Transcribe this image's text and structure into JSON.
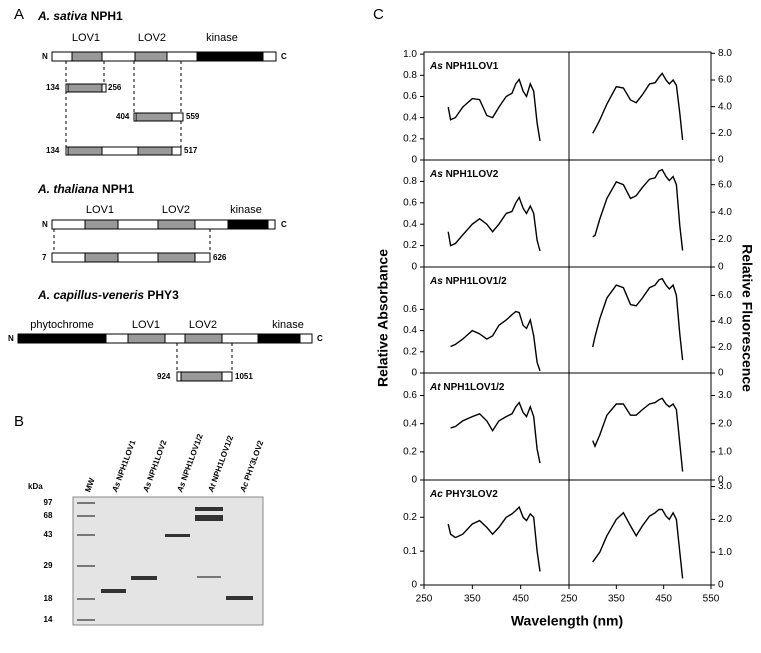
{
  "panel_a": {
    "label": "A",
    "constructs": [
      {
        "species": "A. sativa",
        "protein": "NPH1",
        "n": "N",
        "c": "C",
        "domains": [
          "LOV1",
          "LOV2",
          "kinase"
        ],
        "fragments": [
          [
            134,
            256
          ],
          [
            404,
            559
          ],
          [
            134,
            517
          ]
        ]
      },
      {
        "species": "A. thaliana",
        "protein": "NPH1",
        "n": "N",
        "c": "C",
        "domains": [
          "LOV1",
          "LOV2",
          "kinase"
        ],
        "fragments": [
          [
            7,
            626
          ]
        ]
      },
      {
        "species": "A. capillus-veneris",
        "protein": "PHY3",
        "n": "N",
        "c": "C",
        "domains": [
          "phytochrome",
          "LOV1",
          "LOV2",
          "kinase"
        ],
        "fragments": [
          [
            924,
            1051
          ]
        ]
      }
    ]
  },
  "panel_b": {
    "label": "B",
    "unit": "kDa",
    "markers": [
      97,
      68,
      43,
      29,
      18,
      14
    ],
    "lanes": [
      {
        "species": "",
        "name": "MW"
      },
      {
        "species": "As",
        "name": "NPH1LOV1"
      },
      {
        "species": "As",
        "name": "NPH1LOV2"
      },
      {
        "species": "As",
        "name": "NPH1LOV1/2"
      },
      {
        "species": "At",
        "name": "NPH1LOV1/2"
      },
      {
        "species": "Ac",
        "name": "PHY3LOV2"
      }
    ]
  },
  "panel_c": {
    "label": "C",
    "y_title": "Relative Absorbance",
    "y2_title": "Relative Fluorescence",
    "x_title": "Wavelength (nm)",
    "xlim": [
      250,
      550
    ],
    "xticks_left": [
      250,
      350,
      450
    ],
    "xticks_right": [
      250,
      350,
      450,
      550
    ],
    "wavelengths": [
      300,
      305,
      315,
      330,
      350,
      365,
      380,
      392,
      405,
      420,
      432,
      440,
      447,
      455,
      462,
      470,
      477,
      484,
      490
    ],
    "rows": [
      {
        "species": "As",
        "name": "NPH1LOV1",
        "ylim": [
          0,
          1.02
        ],
        "yticks": [
          0,
          0.2,
          0.4,
          0.6,
          0.8,
          {
            "value": 1,
            "label": "1.0"
          }
        ],
        "y2lim": [
          0,
          8.1
        ],
        "y2ticks": [
          0,
          {
            "value": 2,
            "label": "2.0"
          },
          {
            "value": 4,
            "label": "4.0"
          },
          {
            "value": 6,
            "label": "6.0"
          },
          {
            "value": 8,
            "label": "8.0"
          }
        ],
        "absorbance": [
          0.5,
          0.38,
          0.4,
          0.5,
          0.58,
          0.57,
          0.42,
          0.4,
          0.5,
          0.6,
          0.63,
          0.72,
          0.76,
          0.65,
          0.6,
          0.72,
          0.65,
          0.35,
          0.18
        ],
        "fluorescence": [
          2.0,
          2.3,
          3.0,
          4.2,
          5.5,
          5.4,
          4.5,
          4.3,
          4.9,
          5.7,
          5.8,
          6.2,
          6.5,
          6.0,
          5.7,
          6.0,
          5.6,
          3.5,
          1.5
        ]
      },
      {
        "species": "As",
        "name": "NPH1LOV2",
        "ylim": [
          0,
          1.0
        ],
        "yticks": [
          0,
          0.2,
          0.4,
          0.6,
          0.8
        ],
        "y2lim": [
          0,
          7.8
        ],
        "y2ticks": [
          0,
          {
            "value": 2,
            "label": "2.0"
          },
          {
            "value": 4,
            "label": "4.0"
          },
          {
            "value": 6,
            "label": "6.0"
          }
        ],
        "absorbance": [
          0.33,
          0.2,
          0.22,
          0.3,
          0.4,
          0.45,
          0.4,
          0.33,
          0.4,
          0.5,
          0.52,
          0.6,
          0.65,
          0.55,
          0.5,
          0.57,
          0.5,
          0.25,
          0.15
        ],
        "fluorescence": [
          2.2,
          2.3,
          3.5,
          5.0,
          6.2,
          6.0,
          5.0,
          5.2,
          5.8,
          6.4,
          6.5,
          7.0,
          7.1,
          6.6,
          6.3,
          6.6,
          6.0,
          3.0,
          1.2
        ]
      },
      {
        "species": "As",
        "name": "NPH1LOV1/2",
        "ylim": [
          0,
          1.0
        ],
        "yticks": [
          0,
          0.2,
          0.4,
          0.6
        ],
        "y2lim": [
          0,
          8.2
        ],
        "y2ticks": [
          0,
          {
            "value": 2,
            "label": "2.0"
          },
          {
            "value": 4,
            "label": "4.0"
          },
          {
            "value": 6,
            "label": "6.0"
          }
        ],
        "absorbance": [
          null,
          0.25,
          0.27,
          0.32,
          0.4,
          0.37,
          0.32,
          0.35,
          0.45,
          0.5,
          0.55,
          0.58,
          0.57,
          0.45,
          0.42,
          0.5,
          0.35,
          0.1,
          0.02
        ],
        "fluorescence": [
          2.0,
          2.8,
          4.2,
          5.8,
          6.8,
          6.6,
          5.3,
          5.2,
          5.8,
          6.6,
          6.8,
          7.2,
          7.3,
          6.8,
          6.5,
          6.8,
          6.0,
          3.0,
          1.0
        ]
      },
      {
        "species": "At",
        "name": "NPH1LOV1/2",
        "ylim": [
          0,
          0.76
        ],
        "yticks": [
          0,
          0.2,
          0.4,
          0.6
        ],
        "y2lim": [
          0,
          3.8
        ],
        "y2ticks": [
          0,
          {
            "value": 1,
            "label": "1.0"
          },
          {
            "value": 2,
            "label": "2.0"
          },
          {
            "value": 3,
            "label": "3.0"
          }
        ],
        "absorbance": [
          null,
          0.37,
          0.38,
          0.42,
          0.45,
          0.47,
          0.42,
          0.35,
          0.42,
          0.45,
          0.47,
          0.52,
          0.55,
          0.48,
          0.45,
          0.52,
          0.45,
          0.22,
          0.12
        ],
        "fluorescence": [
          1.4,
          1.2,
          1.6,
          2.3,
          2.7,
          2.7,
          2.3,
          2.3,
          2.5,
          2.7,
          2.75,
          2.85,
          2.9,
          2.7,
          2.6,
          2.7,
          2.5,
          1.3,
          0.3
        ]
      },
      {
        "species": "Ac",
        "name": "PHY3LOV2",
        "ylim": [
          0,
          0.31
        ],
        "yticks": [
          0,
          0.1,
          0.2
        ],
        "y2lim": [
          0,
          3.2
        ],
        "y2ticks": [
          0,
          {
            "value": 1,
            "label": "1.0"
          },
          {
            "value": 2,
            "label": "2.0"
          },
          {
            "value": 3,
            "label": "3.0"
          }
        ],
        "absorbance": [
          0.18,
          0.15,
          0.14,
          0.15,
          0.18,
          0.19,
          0.17,
          0.15,
          0.17,
          0.2,
          0.21,
          0.22,
          0.23,
          0.2,
          0.19,
          0.21,
          0.2,
          0.1,
          0.04
        ],
        "fluorescence": [
          0.7,
          0.8,
          1.0,
          1.5,
          2.0,
          2.2,
          1.8,
          1.5,
          1.8,
          2.1,
          2.2,
          2.3,
          2.3,
          2.1,
          2.0,
          2.2,
          2.0,
          1.0,
          0.2
        ]
      }
    ]
  }
}
